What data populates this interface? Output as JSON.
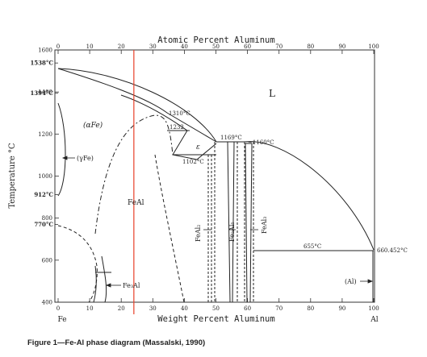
{
  "top_axis": {
    "title": "Atomic Percent Aluminum",
    "ticks": [
      {
        "at": 0,
        "label": "0"
      },
      {
        "at": 10,
        "label": "10"
      },
      {
        "at": 20,
        "label": "20"
      },
      {
        "at": 30,
        "label": "30"
      },
      {
        "at": 40,
        "label": "40"
      },
      {
        "at": 50,
        "label": "50"
      },
      {
        "at": 60,
        "label": "60"
      },
      {
        "at": 70,
        "label": "70"
      },
      {
        "at": 80,
        "label": "80"
      },
      {
        "at": 90,
        "label": "90"
      },
      {
        "at": 100,
        "label": "100"
      }
    ]
  },
  "bottom_axis": {
    "title": "Weight Percent Aluminum",
    "left_end": "Fe",
    "right_end": "Al",
    "ticks": [
      {
        "at": 0,
        "label": "0"
      },
      {
        "at": 10,
        "label": "10"
      },
      {
        "at": 20,
        "label": "20"
      },
      {
        "at": 30,
        "label": "30"
      },
      {
        "at": 40,
        "label": "40"
      },
      {
        "at": 50,
        "label": "50"
      },
      {
        "at": 60,
        "label": "60"
      },
      {
        "at": 70,
        "label": "70"
      },
      {
        "at": 80,
        "label": "80"
      },
      {
        "at": 90,
        "label": "90"
      },
      {
        "at": 100,
        "label": "100"
      }
    ]
  },
  "left_axis": {
    "title": "Temperature °C",
    "ticks": [
      {
        "at": 400,
        "label": "400"
      },
      {
        "at": 600,
        "label": "600"
      },
      {
        "at": 800,
        "label": "800"
      },
      {
        "at": 1000,
        "label": "1000"
      },
      {
        "at": 1200,
        "label": "1200"
      },
      {
        "at": 1400,
        "label": "1400"
      },
      {
        "at": 1600,
        "label": "1600"
      }
    ],
    "special": [
      {
        "at": 1538,
        "label": "1538°C"
      },
      {
        "at": 1394,
        "label": "1394°C"
      },
      {
        "at": 912,
        "label": "912°C"
      },
      {
        "at": 770,
        "label": "770°C"
      }
    ]
  },
  "phase_labels": {
    "liquid": "L",
    "alpha_fe": "(αFe)",
    "gamma_fe": "(γFe)",
    "fe_al": "FeAl",
    "epsilon": "ε",
    "fe3al": "Fe₃Al",
    "al": "(Al)",
    "feal2": "FeAl₂",
    "fe2al5": "Fe₂Al₅",
    "feal3": "FeAl₃"
  },
  "temperature_labels": {
    "t1310": "1310°C",
    "t1232": "1232",
    "t1169": "1169°C",
    "t1160": "~1160°C",
    "t1102": "1102°C",
    "t655": "655°C",
    "t660": "660.452°C"
  },
  "marker": {
    "weight_percent_al": 24,
    "color": "#e8402a"
  },
  "caption": "Figure 1—Fe-Al phase diagram (Massalski, 1990)"
}
